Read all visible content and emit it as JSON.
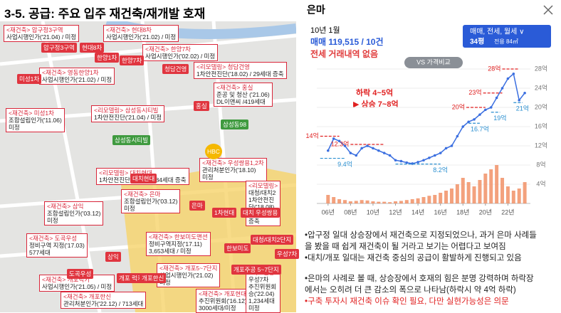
{
  "left": {
    "title": "3-5. 공급: 주요 입주 재건축/재개발 호재",
    "callouts": [
      [
        "<재건축> 압구정3구역",
        "사업시행인가('21.04) / 미정"
      ],
      [
        "<재건축> 현대8차",
        "사업시행인가('21.02) / 미정"
      ],
      [
        "<재건축> 한양7차",
        "사업시행인가('02.02) / 미정"
      ],
      [
        "<리모델링> 청담건영",
        "1차안전진단('18.02) / 29세대 증축"
      ],
      [
        "<재건축> 영동한양1차",
        "사업시행인가('21.02) / 미정"
      ],
      [
        "<재건축> 홍실",
        "준공 및 청산 ('21.06)",
        "DL이앤씨 /419세대"
      ],
      [
        "<재건축> 미성1차",
        "조합설립인가('11.06)",
        "미정"
      ],
      [
        "<리모델링> 삼성동시티빌",
        "1차안전진단('21.04) / 미정"
      ],
      [
        "<리모델링> 대치현대",
        "1차안전진단('21.04) / 84세대 증축"
      ],
      [
        "<재건축> 우성쌍용1,2차",
        "관리처분인가('18.10)",
        "미정"
      ],
      [
        "<재건축> 삼익",
        "조합설립인가('03.12)",
        "미정"
      ],
      [
        "<재건축> 은마",
        "조합설립인가('03.12)",
        "미정"
      ],
      [
        "<리모델링>",
        "대청/대치2",
        "1차안전진",
        "단('18.08)",
        "/ 315세대",
        "증축"
      ],
      [
        "<재건축> 도곡우성",
        "정비구역 지정('17.03)",
        "577세대"
      ],
      [
        "<재건축> 한보미도맨션",
        "정비구역지정('17.11)",
        "3,653세대 / 미정"
      ],
      [
        "<재건축> 개포5~7단지",
        "사업시행인가('21.02)",
        "미정"
      ],
      [
        "<재건축> 개포럭키",
        "사업시행인가('21.05) / 미정"
      ],
      [
        "<재건축> 개포한신",
        "관리처분인가('22.12) / 713세대"
      ],
      [
        "<재건축> 개포현대1차",
        "추진위원회('16.12)",
        "3000세대/미정"
      ],
      [
        "<리모델링>",
        "우성7차",
        "추진위원회",
        "승('22.04)",
        "1,234세대",
        "미정"
      ]
    ],
    "places": [
      "압구정3구역",
      "현대8차",
      "한양1차",
      "한양7차",
      "미성1차",
      "청담건영",
      "홍실",
      "삼성동98",
      "삼성동시티빌",
      "HBC",
      "대치현대",
      "1차현대",
      "대치 우성쌍용",
      "대청/대치2단지",
      "한보미도",
      "은마",
      "우성7차",
      "삼익",
      "도곡우성",
      "개포 럭키",
      "개포한신",
      "개포주공 5~7단지"
    ]
  },
  "right": {
    "name": "은마",
    "date": "10년 1월",
    "trade": "매매 119,515 / 10건",
    "rent": "전세 거래내역 없음",
    "filter": "매매, 전세, 월세 ∨",
    "size": "34평",
    "area": "전용 84㎡",
    "compare": "VS 가격비교",
    "note1": "하락 4~5억",
    "note2": "▶ 상승 7~8억",
    "bullets": [
      "•압구정 일대 상승장에서 재건축으로 지정되었으나, 과거 은마 사례들",
      "을 봤을 때 쉽게 재건축이 될 거라고 보기는 어렵다고 보여짐",
      "•대치/개포 일대는 재건축 중심의 공급이 활발하게 진행되고 있음",
      "•은마의 사례로 볼 때, 상승장에서 호재의 힘은 분명 강력하며 하락장",
      "에서는 오히려 더 큰 감소의 폭으로 나타남(하락시 약 4억 하락)",
      "•구축 투자시 재건축 이슈 확인 필요, 다만 실현가능성은 의문"
    ]
  },
  "chart_data": {
    "type": "line",
    "x": [
      2006,
      2006.5,
      2007,
      2007.5,
      2008,
      2008.5,
      2009,
      2009.5,
      2010,
      2010.5,
      2011,
      2011.5,
      2012,
      2012.5,
      2013,
      2013.5,
      2014,
      2014.5,
      2015,
      2015.5,
      2016,
      2016.5,
      2017,
      2017.5,
      2018,
      2018.5,
      2019,
      2019.5,
      2020,
      2020.5,
      2021,
      2021.5,
      2022,
      2022.5,
      2023,
      2023.5
    ],
    "series": [
      {
        "color": "#3b6fe0",
        "values": [
          11,
          13.5,
          13,
          12,
          10.5,
          10,
          11.5,
          12,
          11.5,
          11,
          10.5,
          10,
          9,
          8.8,
          8.5,
          8.3,
          8.6,
          9,
          9.5,
          10,
          10.5,
          11.5,
          12,
          14,
          16,
          17,
          17.5,
          18.5,
          19.5,
          20,
          22,
          24,
          26,
          27,
          21.5,
          23
        ]
      }
    ],
    "volume": {
      "color": "#f08a5d",
      "y2lim": [
        0,
        100
      ],
      "values": [
        20,
        15,
        10,
        8,
        5,
        6,
        8,
        7,
        5,
        4,
        4,
        3,
        5,
        6,
        8,
        10,
        12,
        15,
        18,
        20,
        25,
        30,
        35,
        45,
        60,
        50,
        40,
        55,
        70,
        80,
        90,
        60,
        40,
        30,
        35,
        50
      ]
    },
    "annotations": [
      {
        "label": "28억",
        "value": 28,
        "x": [
          2021.5,
          2023
        ],
        "color": "#e02020"
      },
      {
        "label": "23억",
        "value": 23,
        "x": [
          2019.8,
          2021.5
        ],
        "color": "#e02020"
      },
      {
        "label": "20억",
        "value": 20,
        "x": [
          2018.3,
          2020
        ],
        "color": "#e02020"
      },
      {
        "label": "14억",
        "value": 14,
        "x": [
          2005.3,
          2007
        ],
        "color": "#e02020"
      },
      {
        "label": "12.3억",
        "value": 12.3,
        "x": [
          2008,
          2011
        ],
        "color": "#e02020"
      },
      {
        "label": "9.4억",
        "value": 9.4,
        "x": [
          2005.3,
          2007.5
        ],
        "color": "#2a8fd0"
      },
      {
        "label": "8.2억",
        "value": 8.2,
        "x": [
          2012,
          2016
        ],
        "color": "#2a8fd0"
      },
      {
        "label": "16.7억",
        "value": 16.7,
        "x": [
          2018.5,
          2019.5
        ],
        "color": "#2a8fd0"
      },
      {
        "label": "19억",
        "value": 19,
        "x": [
          2020.5,
          2021.3
        ],
        "color": "#2a8fd0"
      },
      {
        "label": "21억",
        "value": 21,
        "x": [
          2022.5,
          2023.3
        ],
        "color": "#2a8fd0"
      }
    ],
    "xlim": [
      2005,
      2024
    ],
    "xticks": [
      {
        "value": 2006,
        "label": "06년"
      },
      {
        "value": 2008,
        "label": "08년"
      },
      {
        "value": 2010,
        "label": "10년"
      },
      {
        "value": 2012,
        "label": "12년"
      },
      {
        "value": 2014,
        "label": "14년"
      },
      {
        "value": 2016,
        "label": "16년"
      },
      {
        "value": 2018,
        "label": "18년"
      },
      {
        "value": 2020,
        "label": "20년"
      },
      {
        "value": 2022,
        "label": "22년"
      }
    ],
    "ylim": [
      0,
      28
    ],
    "yticks": [
      {
        "value": 4,
        "label": "4억"
      },
      {
        "value": 8,
        "label": "8억"
      },
      {
        "value": 12,
        "label": "12억"
      },
      {
        "value": 16,
        "label": "16억"
      },
      {
        "value": 20,
        "label": "20억"
      },
      {
        "value": 24,
        "label": "24억"
      },
      {
        "value": 28,
        "label": "28억"
      }
    ]
  }
}
